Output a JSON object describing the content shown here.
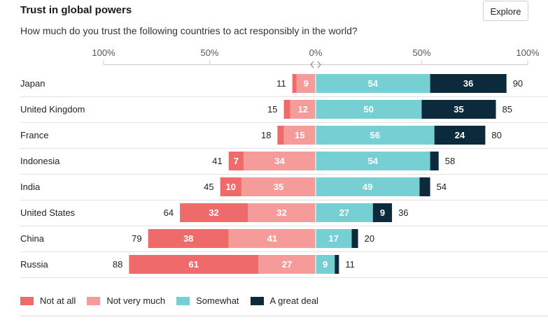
{
  "header": {
    "title": "Trust in global powers",
    "subtitle": "How much do you trust the following countries to act responsibly in the world?",
    "explore_label": "Explore"
  },
  "colors": {
    "not_at_all": "#ef6b6b",
    "not_very_much": "#f59c9a",
    "somewhat": "#76cfd2",
    "great_deal": "#0b2a3c"
  },
  "chart_data": {
    "type": "bar",
    "orientation": "horizontal-diverging",
    "title": "Trust in global powers",
    "subtitle": "How much do you trust the following countries to act responsibly in the world?",
    "axis_ticks": [
      "100%",
      "50%",
      "0%",
      "50%",
      "100%"
    ],
    "xlim": [
      -100,
      100
    ],
    "categories": [
      "Japan",
      "United Kingdom",
      "France",
      "Indonesia",
      "India",
      "United States",
      "China",
      "Russia"
    ],
    "series": [
      {
        "name": "Not at all",
        "side": "negative",
        "values": [
          2,
          3,
          3,
          7,
          10,
          32,
          38,
          61
        ]
      },
      {
        "name": "Not very much",
        "side": "negative",
        "values": [
          9,
          12,
          15,
          34,
          35,
          32,
          41,
          27
        ]
      },
      {
        "name": "Somewhat",
        "side": "positive",
        "values": [
          54,
          50,
          56,
          54,
          49,
          27,
          17,
          9
        ]
      },
      {
        "name": "A great deal",
        "side": "positive",
        "values": [
          36,
          35,
          24,
          4,
          5,
          9,
          3,
          2
        ]
      }
    ],
    "bar_labels": {
      "Not at all": [
        "",
        "",
        "",
        "7",
        "10",
        "32",
        "38",
        "61"
      ],
      "Not very much": [
        "9",
        "12",
        "15",
        "34",
        "35",
        "32",
        "41",
        "27"
      ],
      "Somewhat": [
        "54",
        "50",
        "56",
        "54",
        "49",
        "27",
        "17",
        "9"
      ],
      "A great deal": [
        "36",
        "35",
        "24",
        "",
        "",
        "9",
        "",
        ""
      ]
    },
    "negative_totals": [
      11,
      15,
      18,
      41,
      45,
      64,
      79,
      88
    ],
    "positive_totals": [
      90,
      85,
      80,
      58,
      54,
      36,
      20,
      11
    ],
    "legend": [
      "Not at all",
      "Not very much",
      "Somewhat",
      "A great deal"
    ],
    "legend_position": "bottom-left"
  }
}
